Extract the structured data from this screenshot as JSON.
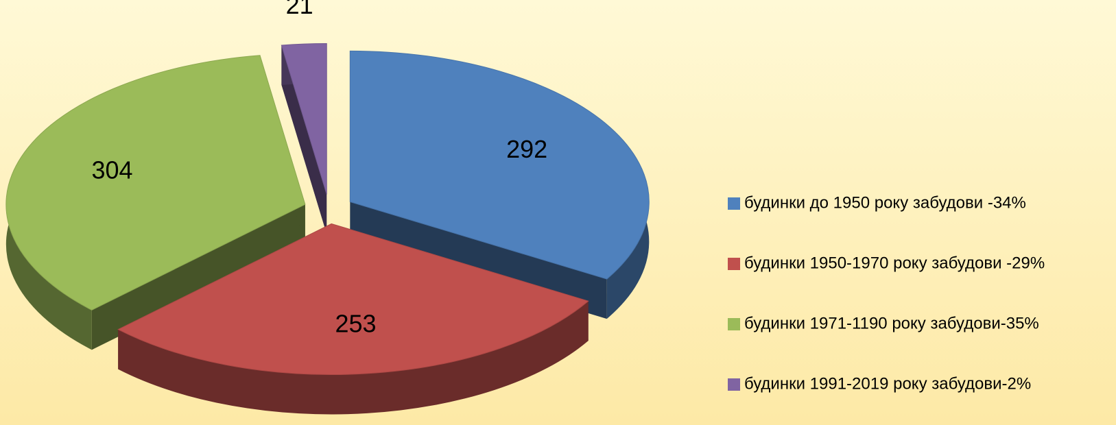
{
  "chart_data": {
    "type": "pie",
    "categories": [
      "будинки до 1950 року забудови -34%",
      "будинки 1950-1970 року забудови -29%",
      "будинки 1971-1190 року забудови-35%",
      "будинки 1991-2019 року забудови-2%"
    ],
    "values": [
      292,
      253,
      304,
      21
    ],
    "colors": [
      "#4f81bd",
      "#c0504d",
      "#9bbb59",
      "#8064a2"
    ],
    "legend": "right"
  }
}
